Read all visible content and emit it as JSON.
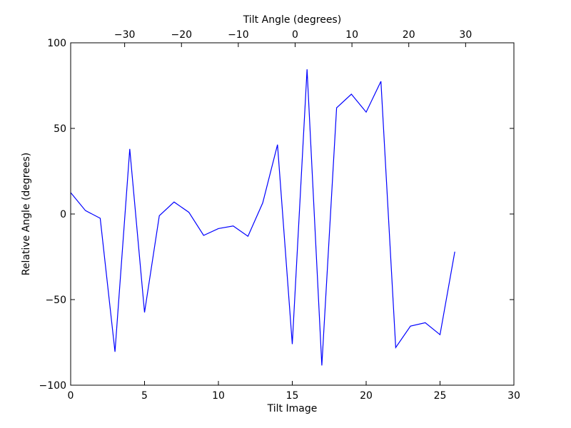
{
  "chart_data": {
    "type": "line",
    "title": "",
    "xlabel": "Tilt Image",
    "ylabel": "Relative Angle (degrees)",
    "top_xlabel": "Tilt Angle (degrees)",
    "xlim": [
      0,
      30
    ],
    "ylim": [
      -100,
      100
    ],
    "x_ticks": [
      0,
      5,
      10,
      15,
      20,
      25,
      30
    ],
    "y_ticks": [
      -100,
      -50,
      0,
      50,
      100
    ],
    "top_xlim": [
      -39.5,
      38.5
    ],
    "top_x_ticks": [
      -30,
      -20,
      -10,
      0,
      10,
      20,
      30
    ],
    "top_x_tick_labels": [
      "−30",
      "−20",
      "−10",
      "0",
      "10",
      "20",
      "30"
    ],
    "x_tick_labels": [
      "0",
      "5",
      "10",
      "15",
      "20",
      "25",
      "30"
    ],
    "y_tick_labels": [
      "−100",
      "−50",
      "0",
      "50",
      "100"
    ],
    "grid": false,
    "series_color": "#0000ff",
    "series": [
      {
        "x": [
          0,
          1,
          2,
          3,
          4,
          5,
          6,
          7,
          8,
          9,
          10,
          11,
          12,
          13,
          14,
          15,
          16,
          17,
          18,
          19,
          20,
          21,
          22,
          23,
          24,
          25,
          26
        ],
        "values": [
          12.5,
          2,
          -2.5,
          -80.5,
          38,
          -57.5,
          -1,
          7,
          1,
          -12.5,
          -8.5,
          -7,
          -13,
          6.5,
          40.5,
          -76,
          84.5,
          -88.5,
          62,
          70,
          59.5,
          77.5,
          -78,
          -65.5,
          -63.5,
          -70.5,
          -22
        ]
      }
    ]
  }
}
